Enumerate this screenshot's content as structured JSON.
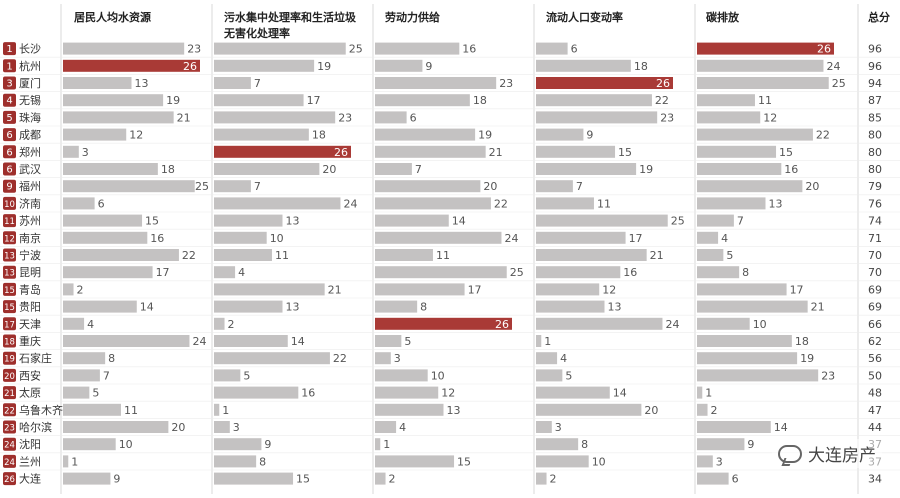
{
  "chart_data": {
    "type": "bar",
    "total_header": "总分",
    "rows": [
      {
        "rank": "1",
        "city": "长沙",
        "total": 96
      },
      {
        "rank": "1",
        "city": "杭州",
        "total": 96
      },
      {
        "rank": "3",
        "city": "厦门",
        "total": 94
      },
      {
        "rank": "4",
        "city": "无锡",
        "total": 87
      },
      {
        "rank": "5",
        "city": "珠海",
        "total": 85
      },
      {
        "rank": "6",
        "city": "成都",
        "total": 80
      },
      {
        "rank": "6",
        "city": "郑州",
        "total": 80
      },
      {
        "rank": "6",
        "city": "武汉",
        "total": 80
      },
      {
        "rank": "9",
        "city": "福州",
        "total": 79
      },
      {
        "rank": "10",
        "city": "济南",
        "total": 76
      },
      {
        "rank": "11",
        "city": "苏州",
        "total": 74
      },
      {
        "rank": "12",
        "city": "南京",
        "total": 71
      },
      {
        "rank": "13",
        "city": "宁波",
        "total": 70
      },
      {
        "rank": "13",
        "city": "昆明",
        "total": 70
      },
      {
        "rank": "15",
        "city": "青岛",
        "total": 69
      },
      {
        "rank": "15",
        "city": "贵阳",
        "total": 69
      },
      {
        "rank": "17",
        "city": "天津",
        "total": 66
      },
      {
        "rank": "18",
        "city": "重庆",
        "total": 62
      },
      {
        "rank": "19",
        "city": "石家庄",
        "total": 56
      },
      {
        "rank": "20",
        "city": "西安",
        "total": 50
      },
      {
        "rank": "21",
        "city": "太原",
        "total": 48
      },
      {
        "rank": "22",
        "city": "乌鲁木齐",
        "total": 47
      },
      {
        "rank": "23",
        "city": "哈尔滨",
        "total": 44
      },
      {
        "rank": "24",
        "city": "沈阳",
        "total": 37
      },
      {
        "rank": "24",
        "city": "兰州",
        "total": 37
      },
      {
        "rank": "26",
        "city": "大连",
        "total": 34
      }
    ],
    "series": [
      {
        "name": "居民人均水资源",
        "values": [
          23,
          26,
          13,
          19,
          21,
          12,
          3,
          18,
          25,
          6,
          15,
          16,
          22,
          17,
          2,
          14,
          4,
          24,
          8,
          7,
          5,
          11,
          20,
          10,
          1,
          9
        ]
      },
      {
        "name": "污水集中处理率和生活垃圾\n无害化处理率",
        "values": [
          25,
          19,
          7,
          17,
          23,
          18,
          26,
          20,
          7,
          24,
          13,
          10,
          11,
          4,
          21,
          13,
          2,
          14,
          22,
          5,
          16,
          1,
          3,
          9,
          8,
          15
        ]
      },
      {
        "name": "劳动力供给",
        "values": [
          16,
          9,
          23,
          18,
          6,
          19,
          21,
          7,
          20,
          22,
          14,
          24,
          11,
          25,
          17,
          8,
          26,
          5,
          3,
          10,
          12,
          13,
          4,
          1,
          15,
          2
        ]
      },
      {
        "name": "流动人口变动率",
        "values": [
          6,
          18,
          26,
          22,
          23,
          9,
          15,
          19,
          7,
          11,
          25,
          17,
          21,
          16,
          12,
          13,
          24,
          1,
          4,
          5,
          14,
          20,
          3,
          8,
          10,
          2
        ]
      },
      {
        "name": "碳排放",
        "values": [
          26,
          24,
          25,
          11,
          12,
          22,
          15,
          16,
          20,
          13,
          7,
          4,
          5,
          8,
          17,
          21,
          10,
          18,
          19,
          23,
          1,
          2,
          14,
          9,
          3,
          6
        ]
      }
    ],
    "max_value": 26,
    "highlight_value": 26,
    "colors": {
      "bar": "#c4c2c2",
      "highlight": "#a93a36",
      "rank_badge": "#9e2f2c",
      "divider": "#d9d9d9"
    }
  },
  "watermark": {
    "text": "大连房产",
    "icon": "wechat-icon"
  }
}
